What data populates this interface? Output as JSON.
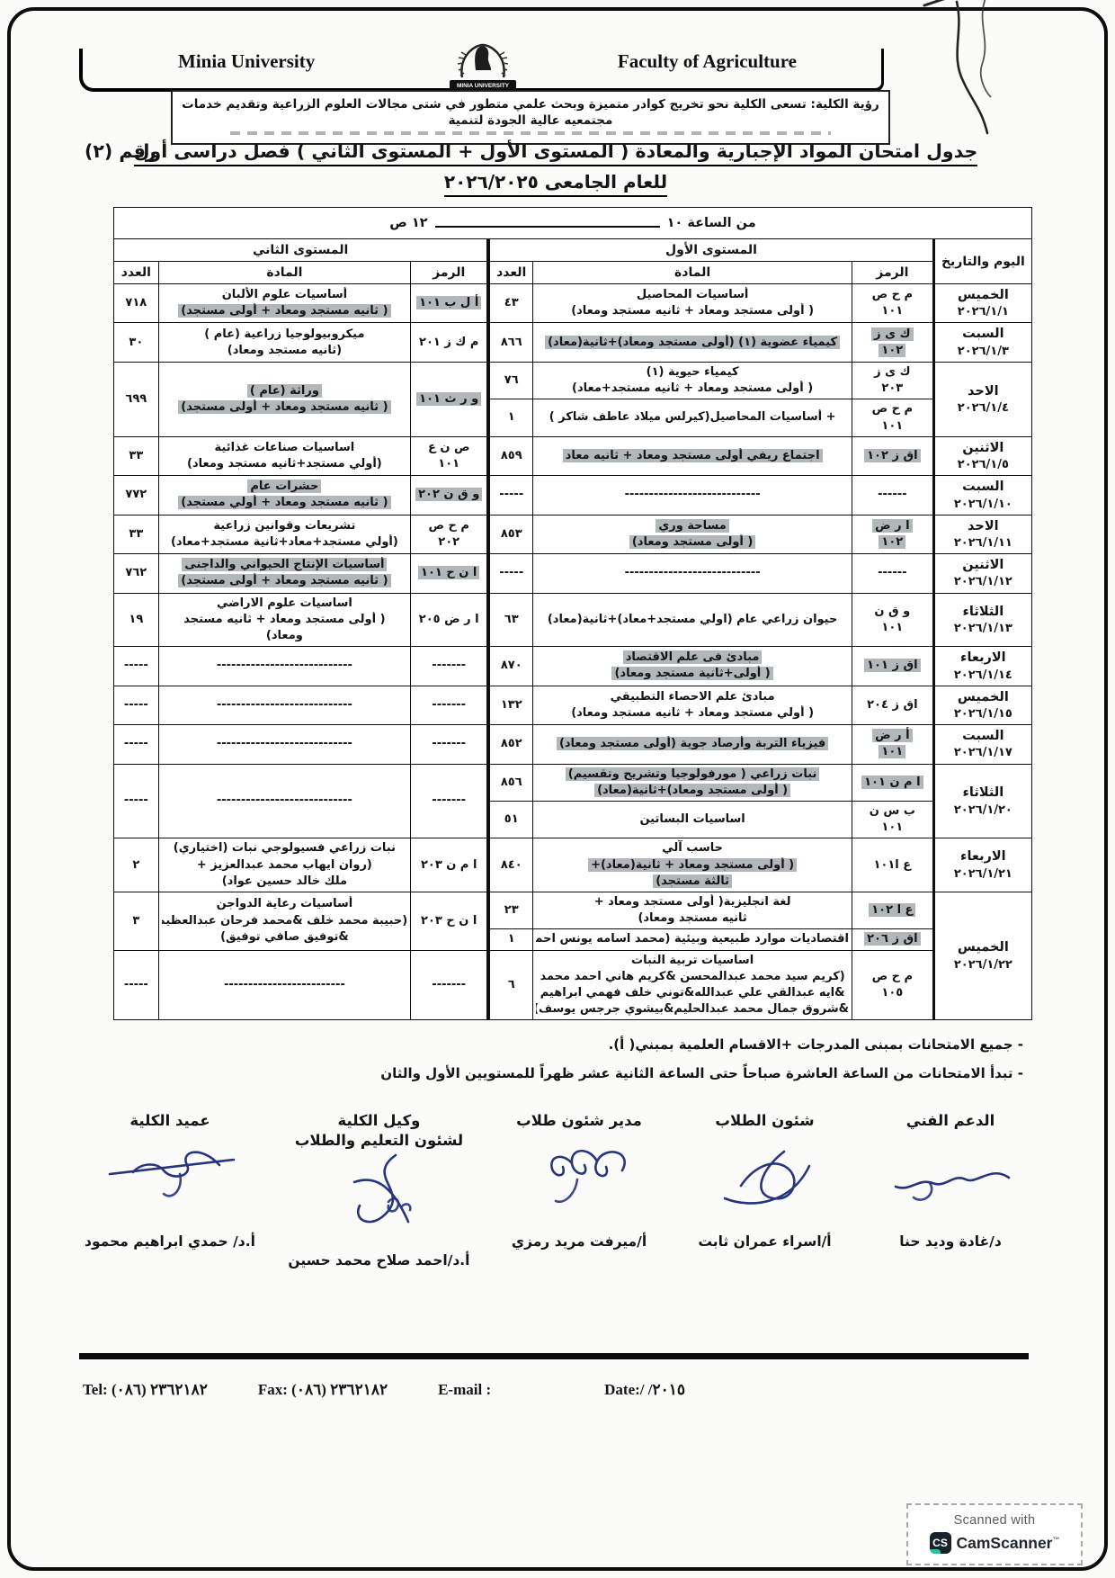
{
  "header": {
    "university_en": "Minia University",
    "faculty_en": "Faculty of Agriculture",
    "logo_caption": "MINIA UNIVERSITY",
    "vision": "رؤية الكلية: تسعى الكلية نحو تخريج كوادر متميزة وبحث علمي متطور في شتى مجالات العلوم الزراعية وتقديم خدمات مجتمعيه عالية الجودة لتنمية"
  },
  "title": {
    "line1": "جدول امتحان المواد الإجبارية والمعادة ( المستوى الأول + المستوى الثاني ) فصل دراسى أول",
    "number": "رقم (٢)",
    "line2": "للعام الجامعى ٢٠٢٦/٢٠٢٥"
  },
  "table": {
    "time_from": "من الساعة ١٠",
    "time_to": "١٢ ص",
    "col_day": "اليوم والتاريخ",
    "level1_header": "المستوى الأول",
    "level2_header": "المستوى الثاني",
    "col_code": "الرمز",
    "col_subject": "المادة",
    "col_count": "العدد",
    "rows": [
      {
        "day": "الخميس",
        "date": "٢٠٢٦/١/١",
        "l1": [
          {
            "code": "م ح ص\n١٠١",
            "hl": 0,
            "lines": [
              [
                "أساسيات المحاصيل",
                0
              ],
              [
                "( أولى مستجد ومعاد + ثانيه مستجد ومعاد)",
                0
              ]
            ],
            "count": "٤٣"
          }
        ],
        "l2": [
          {
            "span": 1,
            "code": "أ ل ب ١٠١",
            "hl": 1,
            "lines": [
              [
                "أساسيات علوم الألبان",
                0
              ],
              [
                "( ثانيه مستجد ومعاد + أولى مستجد)",
                1
              ]
            ],
            "count": "٧١٨"
          }
        ]
      },
      {
        "day": "السبت",
        "date": "٢٠٢٦/١/٣",
        "l1": [
          {
            "code": "ك ى ز\n١٠٢",
            "hl": 1,
            "lines": [
              [
                "كيمياء عضوية (١) (أولى مستجد ومعاد)+ثانية(معاد)",
                1
              ]
            ],
            "count": "٨٦٦"
          }
        ],
        "l2": [
          {
            "span": 1,
            "code": "م ك ز ٢٠١",
            "hl": 0,
            "lines": [
              [
                "ميكروبيولوجيا زراعية (عام )",
                0
              ],
              [
                "(ثانيه مستجد ومعاد)",
                0
              ]
            ],
            "count": "٣٠"
          }
        ]
      },
      {
        "day": "الاحد",
        "date": "٢٠٢٦/١/٤",
        "l1": [
          {
            "code": "ك ى ز\n٢٠٣",
            "hl": 0,
            "lines": [
              [
                "كيمياء حيوية (١)",
                0
              ],
              [
                "( أولى مستجد ومعاد + ثانيه مستجد+معاد)",
                0
              ]
            ],
            "count": "٧٦"
          },
          {
            "code": "م ح ص\n١٠١",
            "hl": 0,
            "lines": [
              [
                "+ أساسيات المحاصيل(كيرلس ميلاد عاطف شاكر )",
                0
              ]
            ],
            "count": "١"
          }
        ],
        "l2": [
          {
            "span": 2,
            "code": "و ر ث ١٠١",
            "hl": 1,
            "lines": [
              [
                "وراثة (عام )",
                1
              ],
              [
                "( ثانيه مستجد ومعاد + أولى مستجد)",
                1
              ]
            ],
            "count": "٦٩٩"
          }
        ]
      },
      {
        "day": "الاثنين",
        "date": "٢٠٢٦/١/٥",
        "l1": [
          {
            "code": "اق ز ١٠٢",
            "hl": 1,
            "lines": [
              [
                "اجتماع ريفي أولى مستجد ومعاد + ثانيه معاد",
                1
              ]
            ],
            "count": "٨٥٩"
          }
        ],
        "l2": [
          {
            "span": 1,
            "code": "ص ن ع\n١٠١",
            "hl": 0,
            "lines": [
              [
                "اساسيات صناعات غذائية",
                0
              ],
              [
                "(أولي مستجد+ثانيه مستجد ومعاد)",
                0
              ]
            ],
            "count": "٣٣"
          }
        ]
      },
      {
        "day": "السبت",
        "date": "٢٠٢٦/١/١٠",
        "l1": [
          {
            "code": "------",
            "hl": 0,
            "lines": [
              [
                "----------------------------",
                0
              ]
            ],
            "count": "-----"
          }
        ],
        "l2": [
          {
            "span": 1,
            "code": "و ق ن ٢٠٢",
            "hl": 1,
            "lines": [
              [
                "حشرات عام",
                1
              ],
              [
                "( ثانيه مستجد ومعاد + أولي مستجد)",
                1
              ]
            ],
            "count": "٧٧٢"
          }
        ]
      },
      {
        "day": "الاحد",
        "date": "٢٠٢٦/١/١١",
        "l1": [
          {
            "code": "ا ر ض\n١٠٢",
            "hl": 1,
            "lines": [
              [
                "مساحة وري",
                1
              ],
              [
                "( أولى مستجد ومعاد)",
                1
              ]
            ],
            "count": "٨٥٣"
          }
        ],
        "l2": [
          {
            "span": 1,
            "code": "م ح ص\n٢٠٢",
            "hl": 0,
            "lines": [
              [
                "تشريعات وقوانين زراعية",
                0
              ],
              [
                "(أولي مستجد+معاد+ثانية مستجد+معاد)",
                0
              ]
            ],
            "count": "٣٣"
          }
        ]
      },
      {
        "day": "الاثنين",
        "date": "٢٠٢٦/١/١٢",
        "l1": [
          {
            "code": "------",
            "hl": 0,
            "lines": [
              [
                "----------------------------",
                0
              ]
            ],
            "count": "-----"
          }
        ],
        "l2": [
          {
            "span": 1,
            "code": "ا ن ح ١٠١",
            "hl": 1,
            "lines": [
              [
                "أساسيات الإنتاج الحيواني والداجنى",
                1
              ],
              [
                "( ثانيه مستجد ومعاد + أولى مستجد)",
                1
              ]
            ],
            "count": "٧٦٢"
          }
        ]
      },
      {
        "day": "الثلاثاء",
        "date": "٢٠٢٦/١/١٣",
        "l1": [
          {
            "code": "و ق ن\n١٠١",
            "hl": 0,
            "lines": [
              [
                "حيوان زراعي عام (اولي مستجد+معاد)+ثانية(معاد)",
                0
              ]
            ],
            "count": "٦٣"
          }
        ],
        "l2": [
          {
            "span": 1,
            "code": "ا ر ض ٢٠٥",
            "hl": 0,
            "lines": [
              [
                "اساسيات علوم الاراضي",
                0
              ],
              [
                "( أولى مستجد ومعاد + ثانيه مستجد",
                0
              ],
              [
                "ومعاد)",
                0
              ]
            ],
            "count": "١٩"
          }
        ]
      },
      {
        "day": "الاربعاء",
        "date": "٢٠٢٦/١/١٤",
        "l1": [
          {
            "code": "اق ز ١٠١",
            "hl": 1,
            "lines": [
              [
                "مبادئ فى علم الاقتصاد",
                1
              ],
              [
                "( أولى+ثانية مستجد ومعاد)",
                1
              ]
            ],
            "count": "٨٧٠"
          }
        ],
        "l2": [
          {
            "span": 1,
            "code": "-------",
            "hl": 0,
            "lines": [
              [
                "----------------------------",
                0
              ]
            ],
            "count": "-----"
          }
        ]
      },
      {
        "day": "الخميس",
        "date": "٢٠٢٦/١/١٥",
        "l1": [
          {
            "code": "اق ز ٢٠٤",
            "hl": 0,
            "lines": [
              [
                "مبادئ علم الاحصاء التطبيقي",
                0
              ],
              [
                "( أولي مستجد ومعاد + ثانيه مستجد ومعاد)",
                0
              ]
            ],
            "count": "١٣٢"
          }
        ],
        "l2": [
          {
            "span": 1,
            "code": "-------",
            "hl": 0,
            "lines": [
              [
                "----------------------------",
                0
              ]
            ],
            "count": "-----"
          }
        ]
      },
      {
        "day": "السبت",
        "date": "٢٠٢٦/١/١٧",
        "l1": [
          {
            "code": "أ ر ض\n١٠١",
            "hl": 1,
            "lines": [
              [
                "فيزياء التربة وأرصاد جوية (أولى مستجد ومعاد)",
                1
              ]
            ],
            "count": "٨٥٢"
          }
        ],
        "l2": [
          {
            "span": 1,
            "code": "-------",
            "hl": 0,
            "lines": [
              [
                "----------------------------",
                0
              ]
            ],
            "count": "-----"
          }
        ]
      },
      {
        "day": "الثلاثاء",
        "date": "٢٠٢٦/١/٢٠",
        "l1": [
          {
            "code": "ا م ن ١٠١",
            "hl": 1,
            "lines": [
              [
                "نبات زراعي ( مورفولوجيا وتشريح وتقسيم)",
                1
              ],
              [
                "( أولى مستجد ومعاد)+ثانية(معاد)",
                1
              ]
            ],
            "count": "٨٥٦"
          },
          {
            "code": "ب س ن\n١٠١",
            "hl": 0,
            "lines": [
              [
                "اساسيات البساتين",
                0
              ]
            ],
            "count": "٥١"
          }
        ],
        "l2": [
          {
            "span": 2,
            "code": "-------",
            "hl": 0,
            "lines": [
              [
                "----------------------------",
                0
              ]
            ],
            "count": "-----"
          }
        ]
      },
      {
        "day": "الاربعاء",
        "date": "٢٠٢٦/١/٢١",
        "l1": [
          {
            "code": "ع ا١٠١",
            "hl": 0,
            "lines": [
              [
                "حاسب آلي",
                0
              ],
              [
                "( أولى مستجد ومعاد + ثانية(معاد)+",
                1
              ],
              [
                "ثالثة مستجد)",
                1
              ]
            ],
            "count": "٨٤٠"
          }
        ],
        "l2": [
          {
            "span": 1,
            "code": "ا م ن ٢٠٣",
            "hl": 0,
            "lines": [
              [
                "نبات زراعي فسيولوجي نبات (اختياري)",
                0
              ],
              [
                "(روان ايهاب محمد عبدالعزيز +",
                0
              ],
              [
                "ملك خالد حسين عواد)",
                0
              ]
            ],
            "count": "٢"
          }
        ]
      },
      {
        "day": "الخميس",
        "date": "٢٠٢٦/١/٢٢",
        "l1": [
          {
            "code": "ع ا ١٠٢",
            "hl": 1,
            "lines": [
              [
                "لغة انجليزية( أولى مستجد ومعاد +",
                0
              ],
              [
                "ثانيه مستجد ومعاد)",
                0
              ]
            ],
            "count": "٢٣"
          },
          {
            "code": "اق ز ٢٠٦",
            "hl": 1,
            "lines": [
              [
                "اقتصاديات موارد طبيعية وبيئية (محمد اسامه يونس احمد)",
                0
              ]
            ],
            "count": "١"
          },
          {
            "code": "م ح ص\n١٠٥",
            "hl": 0,
            "lines": [
              [
                "اساسيات تربية النبات",
                0
              ],
              [
                "(كريم سيد محمد عبدالمحسن &كريم هاني احمد محمد",
                0
              ],
              [
                "&ايه عبدالقي علي عبدالله&توني خلف فهمي ابراهيم",
                0
              ],
              [
                "&شروق جمال محمد عبدالحليم&بيشوي جرجس يوسف)",
                0
              ]
            ],
            "count": "٦"
          }
        ],
        "l2": [
          {
            "span": 2,
            "code": "ا ن ح ٢٠٣",
            "hl": 0,
            "lines": [
              [
                "أساسيات رعاية الدواجن",
                0
              ],
              [
                "(حبيبة محمد خلف &محمد فرحان عبدالعظيم",
                0
              ],
              [
                "&توفيق صافي توفيق)",
                0
              ]
            ],
            "count": "٣"
          },
          {
            "span": 1,
            "code": "-------",
            "hl": 0,
            "lines": [
              [
                "-------------------------",
                0
              ]
            ],
            "count": "-----"
          }
        ]
      }
    ]
  },
  "notes": [
    "- جميع الامتحانات بمبنى  المدرجات +الاقسام العلمية بمبني( أ).",
    "- تبدأ الامتحانات من الساعة العاشرة صباحاً حتى الساعة الثانية عشر ظهراً للمستويين الأول والثان"
  ],
  "signatures": [
    {
      "label": "الدعم الفني",
      "name": "د/غادة وديد حنا"
    },
    {
      "label": "شئون الطلاب",
      "name": "أ/اسراء عمران ثابت"
    },
    {
      "label": "مدير شئون طلاب",
      "name": "أ/ميرفت مريد رمزي"
    },
    {
      "label": "وكيل الكلية\nلشئون التعليم والطلاب",
      "name": "أ.د/احمد صلاح محمد حسين"
    },
    {
      "label": "عميد الكلية",
      "name": "أ.د/ حمدي ابراهيم محمود"
    }
  ],
  "footer": {
    "tel": "Tel: (٠٨٦) ٢٣٦٢١٨٢",
    "fax": "Fax: (٠٨٦) ٢٣٦٢١٨٢",
    "email_label": "E-mail :",
    "date_label": "Date:",
    "date_value": "/    /٢٠١٥"
  },
  "camscanner": {
    "line1": "Scanned with",
    "icon": "CS",
    "brand": "CamScanner"
  }
}
